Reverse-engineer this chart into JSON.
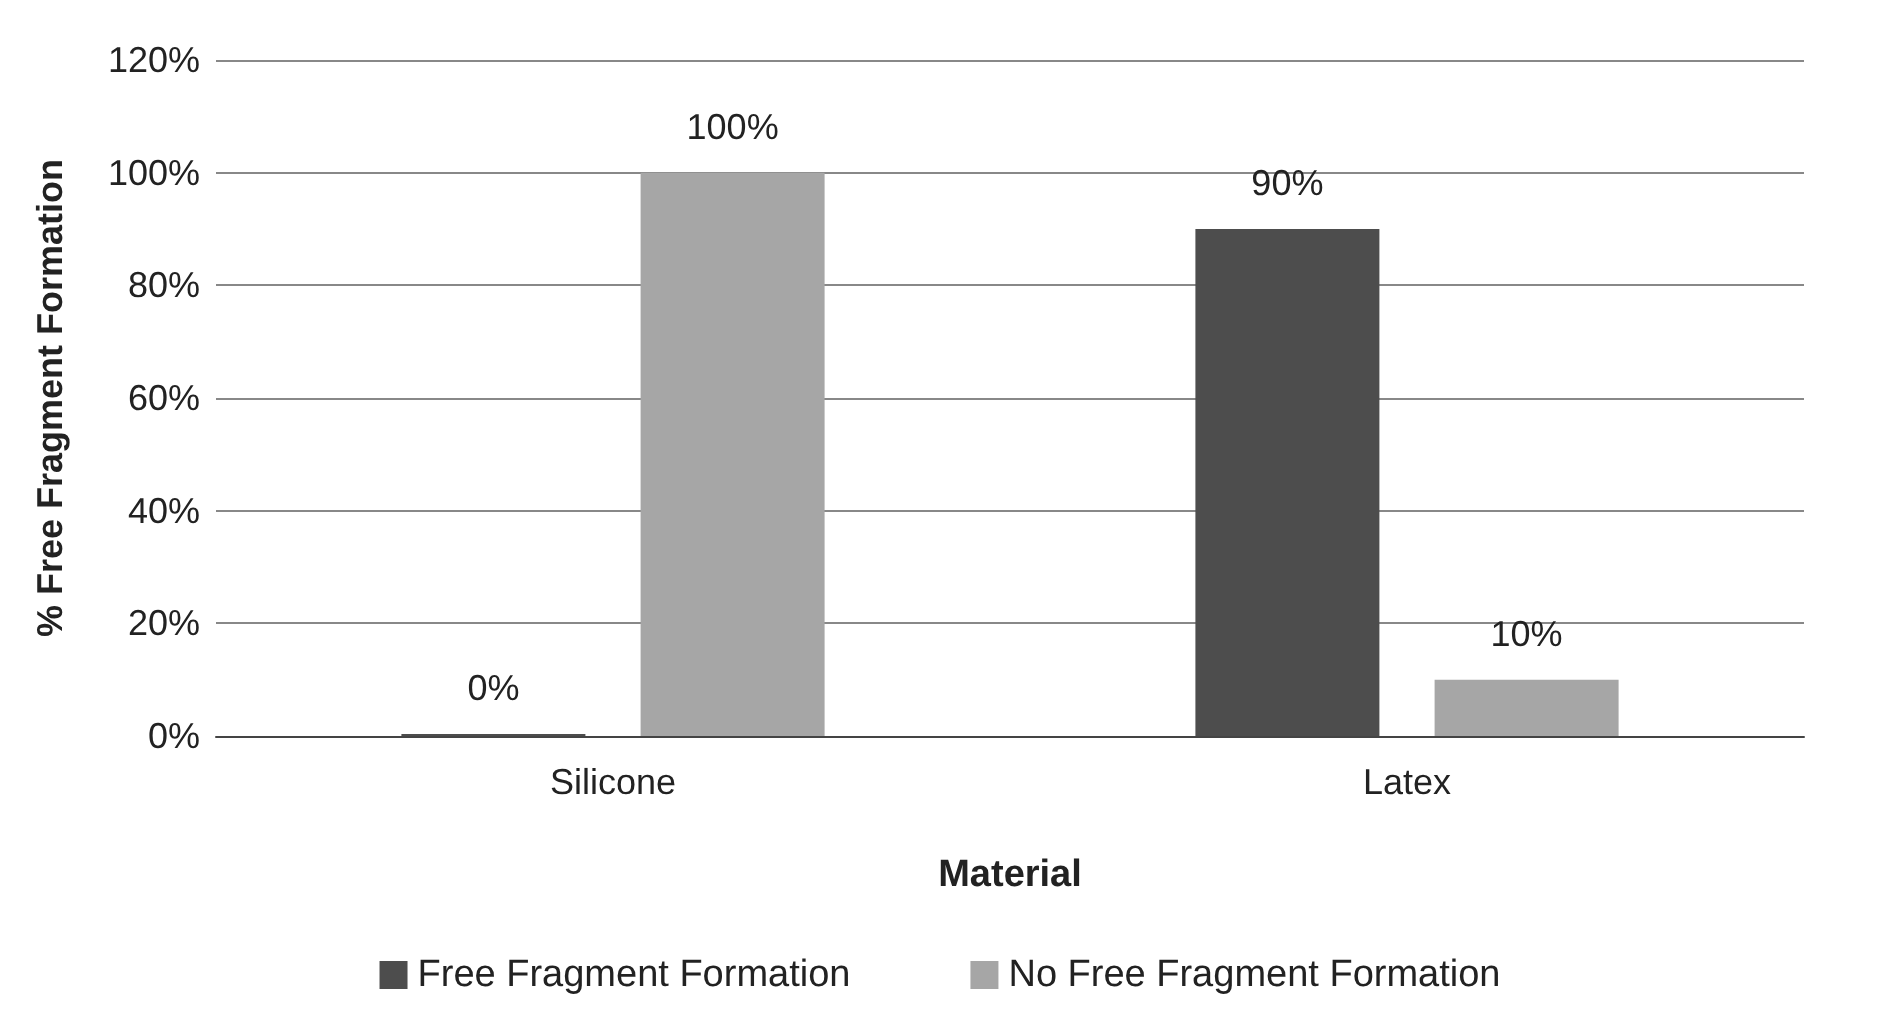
{
  "chart_data": {
    "type": "bar",
    "xlabel": "Material",
    "ylabel": "% Free Fragment Formation",
    "categories": [
      "Silicone",
      "Latex"
    ],
    "series": [
      {
        "name": "Free Fragment Formation",
        "color": "#4d4d4d",
        "values": [
          0,
          90
        ],
        "value_labels": [
          "0%",
          "90%"
        ]
      },
      {
        "name": "No Free Fragment Formation",
        "color": "#a6a6a6",
        "values": [
          100,
          10
        ],
        "value_labels": [
          "100%",
          "10%"
        ]
      }
    ],
    "ylim": [
      0,
      120
    ],
    "yticks": [
      {
        "value": 0,
        "label": "0%"
      },
      {
        "value": 20,
        "label": "20%"
      },
      {
        "value": 40,
        "label": "40%"
      },
      {
        "value": 60,
        "label": "60%"
      },
      {
        "value": 80,
        "label": "80%"
      },
      {
        "value": 100,
        "label": "100%"
      },
      {
        "value": 120,
        "label": "120%"
      }
    ],
    "grid": "y",
    "legend": "bottom"
  }
}
